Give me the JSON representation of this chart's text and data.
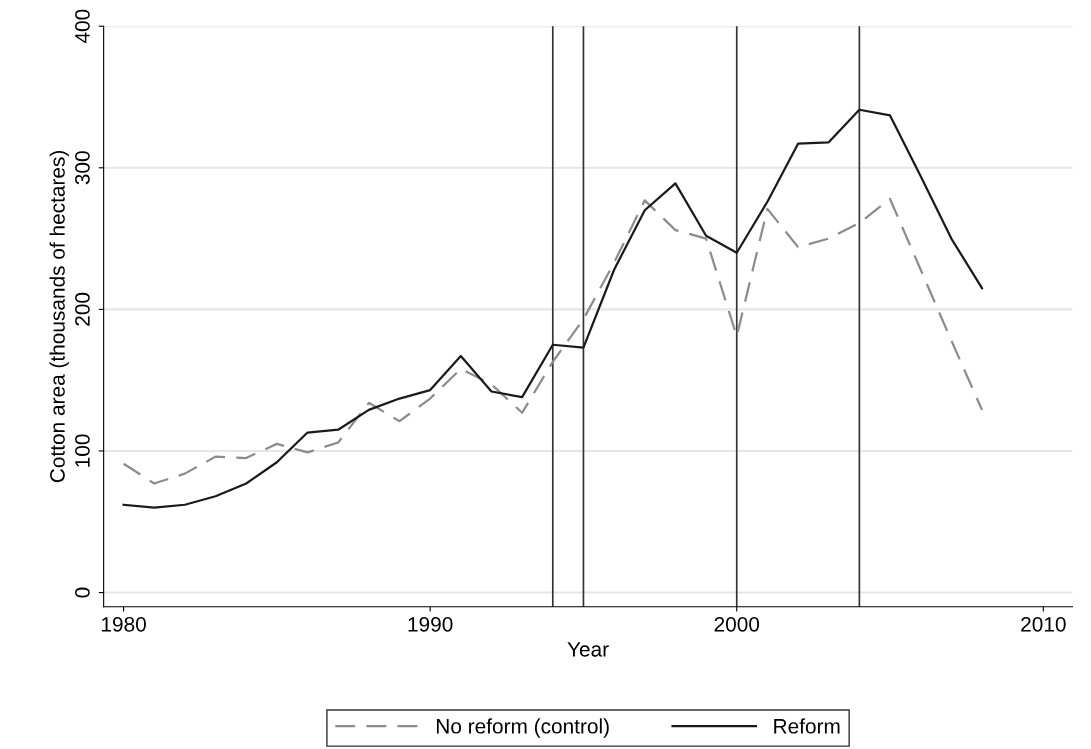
{
  "chart_data": {
    "type": "line",
    "xlabel": "Year",
    "ylabel": "Cotton area (thousands of hectares)",
    "x": [
      1980,
      1981,
      1982,
      1983,
      1984,
      1985,
      1986,
      1987,
      1988,
      1989,
      1990,
      1991,
      1992,
      1993,
      1994,
      1995,
      1996,
      1997,
      1998,
      1999,
      2000,
      2001,
      2002,
      2003,
      2004,
      2005,
      2006,
      2007,
      2008
    ],
    "series": [
      {
        "name": "No reform (control)",
        "color": "#8c8c8c",
        "line_style": "dashed",
        "values": [
          91,
          77,
          84,
          96,
          95,
          105,
          99,
          106,
          134,
          121,
          137,
          158,
          147,
          127,
          163,
          193,
          233,
          277,
          256,
          250,
          181,
          271,
          244,
          250,
          261,
          278,
          228,
          178,
          129
        ]
      },
      {
        "name": "Reform",
        "color": "#1a1a1a",
        "line_style": "solid",
        "values": [
          62,
          60,
          62,
          68,
          77,
          92,
          113,
          115,
          129,
          137,
          143,
          167,
          142,
          138,
          175,
          173,
          228,
          270,
          289,
          252,
          240,
          276,
          317,
          318,
          341,
          337,
          294,
          250,
          215
        ]
      }
    ],
    "xlim": [
      1979.35,
      2010.95
    ],
    "ylim": [
      -10,
      400
    ],
    "xticks": [
      1980,
      1990,
      2000,
      2010
    ],
    "yticks": [
      0,
      100,
      200,
      300,
      400
    ],
    "ref_lines": [
      {
        "axis": "x",
        "value": 1994,
        "color": "#333333"
      },
      {
        "axis": "x",
        "value": 1995,
        "color": "#333333"
      },
      {
        "axis": "x",
        "value": 2000,
        "color": "#333333"
      },
      {
        "axis": "x",
        "value": 2004,
        "color": "#333333"
      }
    ],
    "grid": "y",
    "legend": "bottom",
    "marker": "none"
  }
}
